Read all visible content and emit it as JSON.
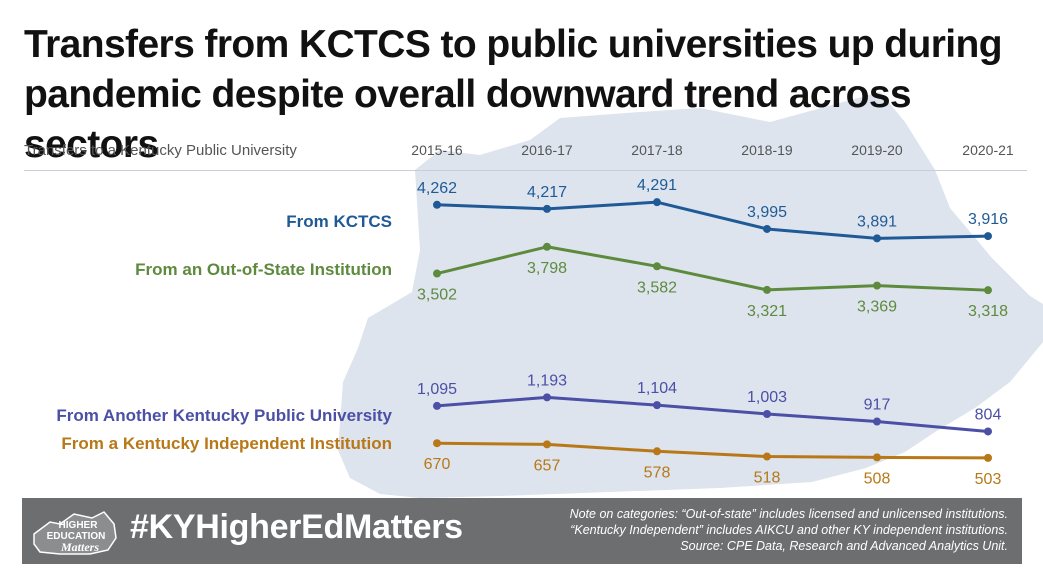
{
  "title_line1": "Transfers from KCTCS to public universities up during",
  "title_line2": "pandemic despite overall downward trend across sectors",
  "subtitle": "Transfers to a Kentucky Public University",
  "footer": {
    "hashtag": "#KYHigherEdMatters",
    "logo_line1": "HIGHER",
    "logo_line2": "EDUCATION",
    "logo_line3": "Matters",
    "note_line1": "Note on categories: “Out-of-state” includes licensed and unlicensed institutions.",
    "note_line2": "“Kentucky Independent” includes AIKCU and other KY independent institutions.",
    "note_line3": "Source: CPE Data, Research and Advanced Analytics Unit."
  },
  "colors": {
    "map": "#dde4ee",
    "footer": "#6d6e70"
  },
  "chart_data": {
    "type": "line",
    "x": [
      "2015-16",
      "2016-17",
      "2017-18",
      "2018-19",
      "2019-20",
      "2020-21"
    ],
    "series": [
      {
        "name": "From KCTCS",
        "color": "#1f5a96",
        "values": [
          4262,
          4217,
          4291,
          3995,
          3891,
          3916
        ],
        "labels": [
          "4,262",
          "4,217",
          "4,291",
          "3,995",
          "3,891",
          "3,916"
        ],
        "label_pos": "above"
      },
      {
        "name": "From an Out-of-State Institution",
        "color": "#5e8a3e",
        "values": [
          3502,
          3798,
          3582,
          3321,
          3369,
          3318
        ],
        "labels": [
          "3,502",
          "3,798",
          "3,582",
          "3,321",
          "3,369",
          "3,318"
        ],
        "label_pos": "below"
      },
      {
        "name": "From Another Kentucky Public University",
        "color": "#4b4fa6",
        "values": [
          1095,
          1193,
          1104,
          1003,
          917,
          804
        ],
        "labels": [
          "1,095",
          "1,193",
          "1,104",
          "1,003",
          "917",
          "804"
        ],
        "label_pos": "above"
      },
      {
        "name": "From a Kentucky Independent Institution",
        "color": "#b87817",
        "values": [
          670,
          657,
          578,
          518,
          508,
          503
        ],
        "labels": [
          "670",
          "657",
          "578",
          "518",
          "508",
          "503"
        ],
        "label_pos": "below"
      }
    ]
  }
}
